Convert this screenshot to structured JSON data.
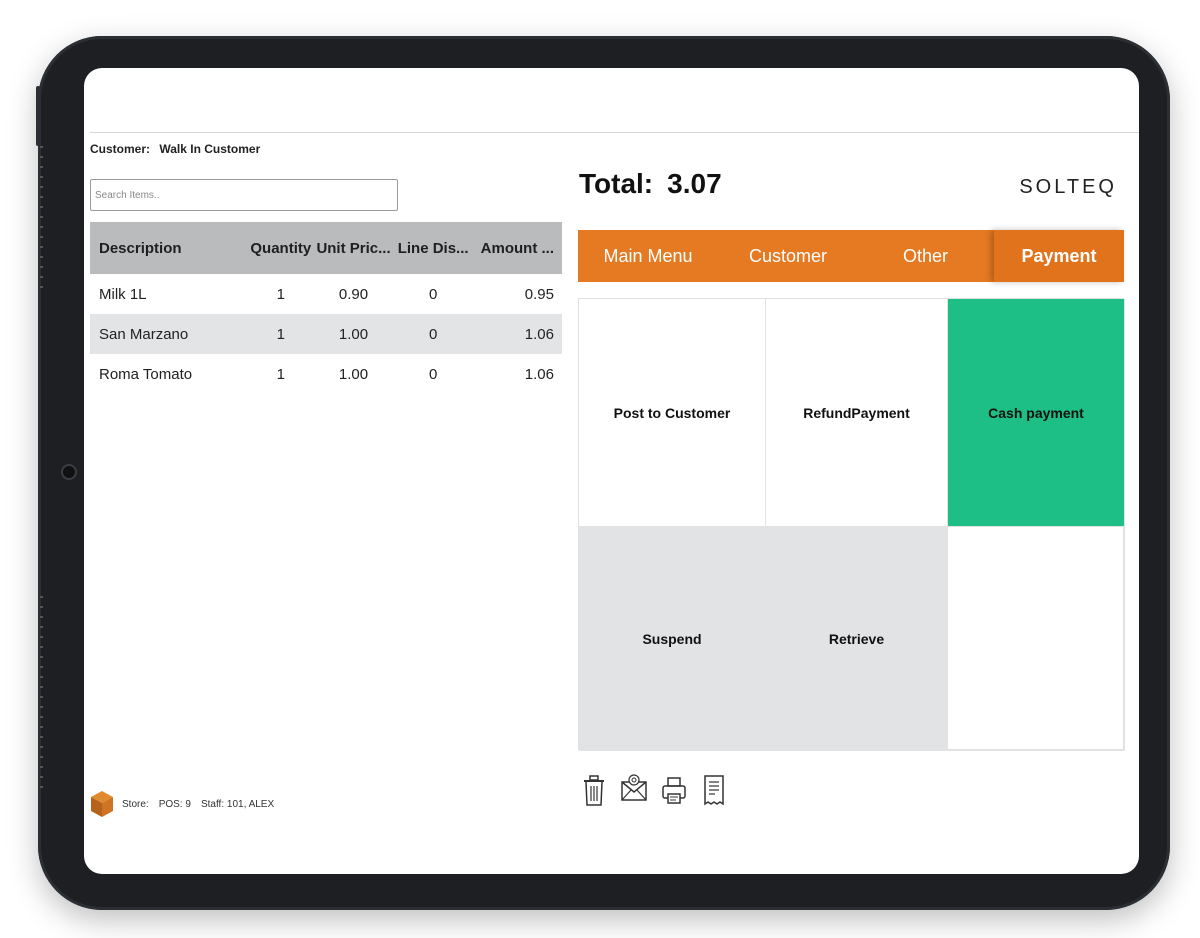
{
  "customer": {
    "label": "Customer:",
    "value": "Walk In Customer"
  },
  "search": {
    "placeholder": "Search Items.."
  },
  "table": {
    "headers": [
      "Description",
      "Quantity",
      "Unit Pric...",
      "Line Dis...",
      "Amount ..."
    ],
    "rows": [
      {
        "description": "Milk 1L",
        "quantity": "1",
        "unit_price": "0.90",
        "line_discount": "0",
        "amount": "0.95"
      },
      {
        "description": "San Marzano",
        "quantity": "1",
        "unit_price": "1.00",
        "line_discount": "0",
        "amount": "1.06"
      },
      {
        "description": "Roma Tomato",
        "quantity": "1",
        "unit_price": "1.00",
        "line_discount": "0",
        "amount": "1.06"
      }
    ]
  },
  "footer": {
    "store_label": "Store:",
    "pos": "POS: 9",
    "staff": "Staff: 101, ALEX"
  },
  "total": {
    "label": "Total:",
    "value": "3.07"
  },
  "brand": "SOLTEQ",
  "tabs": [
    {
      "label": "Main Menu"
    },
    {
      "label": "Customer"
    },
    {
      "label": "Other"
    },
    {
      "label": "Payment",
      "active": true
    }
  ],
  "tiles": [
    {
      "label": "Post to Customer"
    },
    {
      "label": "RefundPayment"
    },
    {
      "label": "Cash payment"
    },
    {
      "label": "Suspend"
    },
    {
      "label": "Retrieve"
    },
    {
      "label": ""
    }
  ],
  "toolbar_icons": [
    "trash-icon",
    "email-icon",
    "printer-icon",
    "receipt-icon"
  ],
  "colors": {
    "accent": "#e57a22",
    "cash_payment": "#1dbf86",
    "tile_gray": "#e2e3e5",
    "table_header": "#b9bbbd"
  }
}
